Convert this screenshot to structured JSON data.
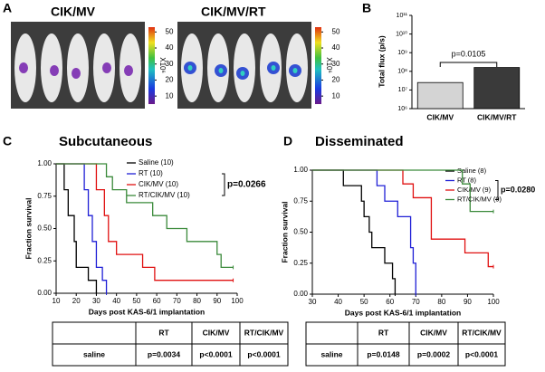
{
  "panel_labels": [
    "A",
    "B",
    "C",
    "D"
  ],
  "panel_a": {
    "image_labels": [
      "CIK/MV",
      "CIK/MV/RT"
    ],
    "colorbar_unit": "X10⁶",
    "colorbar_lim": [
      5,
      53
    ],
    "colorbar_ticks": [
      50,
      40,
      30,
      20,
      10
    ]
  },
  "chart_data": [
    {
      "type": "bar",
      "y_label": "Total flux (p/s)",
      "categories": [
        "CIK/MV",
        "CIK/MV/RT"
      ],
      "values": [
        25000000,
        160000000
      ],
      "colors": [
        "#d4d4d4",
        "#3a3a3a"
      ],
      "log_scale": true,
      "ylim": [
        1000000,
        100000000000
      ],
      "yticks": [
        {
          "value": 1000000,
          "label": "10⁶"
        },
        {
          "value": 10000000,
          "label": "10⁷"
        },
        {
          "value": 100000000,
          "label": "10⁸"
        },
        {
          "value": 1000000000,
          "label": "10⁹"
        },
        {
          "value": 10000000000,
          "label": "10¹⁰"
        },
        {
          "value": 100000000000,
          "label": "10¹¹"
        }
      ],
      "annotation": "p=0.0105"
    },
    {
      "type": "line",
      "step": true,
      "title": "Subcutaneous",
      "x_label": "Days post KAS-6/1 implantation",
      "y_label": "Fraction survival",
      "xlim": [
        10,
        100
      ],
      "xticks": [
        10,
        20,
        30,
        40,
        50,
        60,
        70,
        80,
        90,
        100
      ],
      "ylim": [
        0,
        1
      ],
      "yticks": [
        {
          "value": 0,
          "label": "0.00"
        },
        {
          "value": 0.25,
          "label": "0.25"
        },
        {
          "value": 0.5,
          "label": "0.50"
        },
        {
          "value": 0.75,
          "label": "0.75"
        },
        {
          "value": 1,
          "label": "1.00"
        }
      ],
      "series": [
        {
          "name": "Saline (10)",
          "color": "#000000",
          "x": [
            10,
            14,
            16,
            19,
            20,
            26,
            30
          ],
          "values": [
            1,
            0.8,
            0.6,
            0.4,
            0.2,
            0.1,
            0
          ]
        },
        {
          "name": "RT (10)",
          "color": "#1f1fd6",
          "x": [
            10,
            24,
            26,
            28,
            30,
            33,
            35
          ],
          "values": [
            1,
            0.8,
            0.6,
            0.4,
            0.2,
            0.1,
            0
          ]
        },
        {
          "name": "CIK/MV (10)",
          "color": "#e01010",
          "x": [
            10,
            30,
            34,
            36,
            40,
            53,
            59,
            98
          ],
          "values": [
            1,
            0.8,
            0.6,
            0.4,
            0.3,
            0.2,
            0.1,
            0.1
          ]
        },
        {
          "name": "RT/CIK/MV (10)",
          "color": "#3a8a3a",
          "x": [
            10,
            35,
            38,
            45,
            58,
            65,
            75,
            90,
            92,
            98
          ],
          "values": [
            1,
            0.9,
            0.8,
            0.7,
            0.6,
            0.5,
            0.4,
            0.3,
            0.2,
            0.2
          ]
        }
      ],
      "annotation": "p=0.0266"
    },
    {
      "type": "line",
      "step": true,
      "title": "Disseminated",
      "x_label": "Days post KAS-6/1 implantation",
      "y_label": "Fraction survival",
      "xlim": [
        30,
        100
      ],
      "xticks": [
        30,
        40,
        50,
        60,
        70,
        80,
        90,
        100
      ],
      "ylim": [
        0,
        1
      ],
      "yticks": [
        {
          "value": 0,
          "label": "0.00"
        },
        {
          "value": 0.25,
          "label": "0.25"
        },
        {
          "value": 0.5,
          "label": "0.50"
        },
        {
          "value": 0.75,
          "label": "0.75"
        },
        {
          "value": 1,
          "label": "1.00"
        }
      ],
      "series": [
        {
          "name": "Saline (8)",
          "color": "#000000",
          "x": [
            30,
            42,
            49,
            50,
            52,
            53,
            58,
            61,
            62
          ],
          "values": [
            1,
            0.875,
            0.75,
            0.625,
            0.5,
            0.375,
            0.25,
            0.125,
            0
          ]
        },
        {
          "name": "RT (8)",
          "color": "#1f1fd6",
          "x": [
            30,
            55,
            58,
            63,
            68,
            69,
            70
          ],
          "values": [
            1,
            0.875,
            0.75,
            0.625,
            0.375,
            0.25,
            0
          ]
        },
        {
          "name": "CIK/MV (9)",
          "color": "#e01010",
          "x": [
            30,
            65,
            69,
            76,
            89,
            98,
            100
          ],
          "values": [
            1,
            0.889,
            0.778,
            0.444,
            0.333,
            0.222,
            0.222
          ]
        },
        {
          "name": "RT/CIK/MV (9)",
          "color": "#3a8a3a",
          "x": [
            30,
            88,
            91,
            100
          ],
          "values": [
            1,
            0.889,
            0.667,
            0.667
          ]
        }
      ],
      "annotation": "p=0.0280"
    }
  ],
  "tables": [
    {
      "header": [
        "RT",
        "CIK/MV",
        "RT/CIK/MV"
      ],
      "rows": [
        [
          "saline",
          "p=0.0034",
          "p<0.0001",
          "p<0.0001"
        ]
      ]
    },
    {
      "header": [
        "RT",
        "CIK/MV",
        "RT/CIK/MV"
      ],
      "rows": [
        [
          "saline",
          "p=0.0148",
          "p=0.0002",
          "p<0.0001"
        ]
      ]
    }
  ]
}
